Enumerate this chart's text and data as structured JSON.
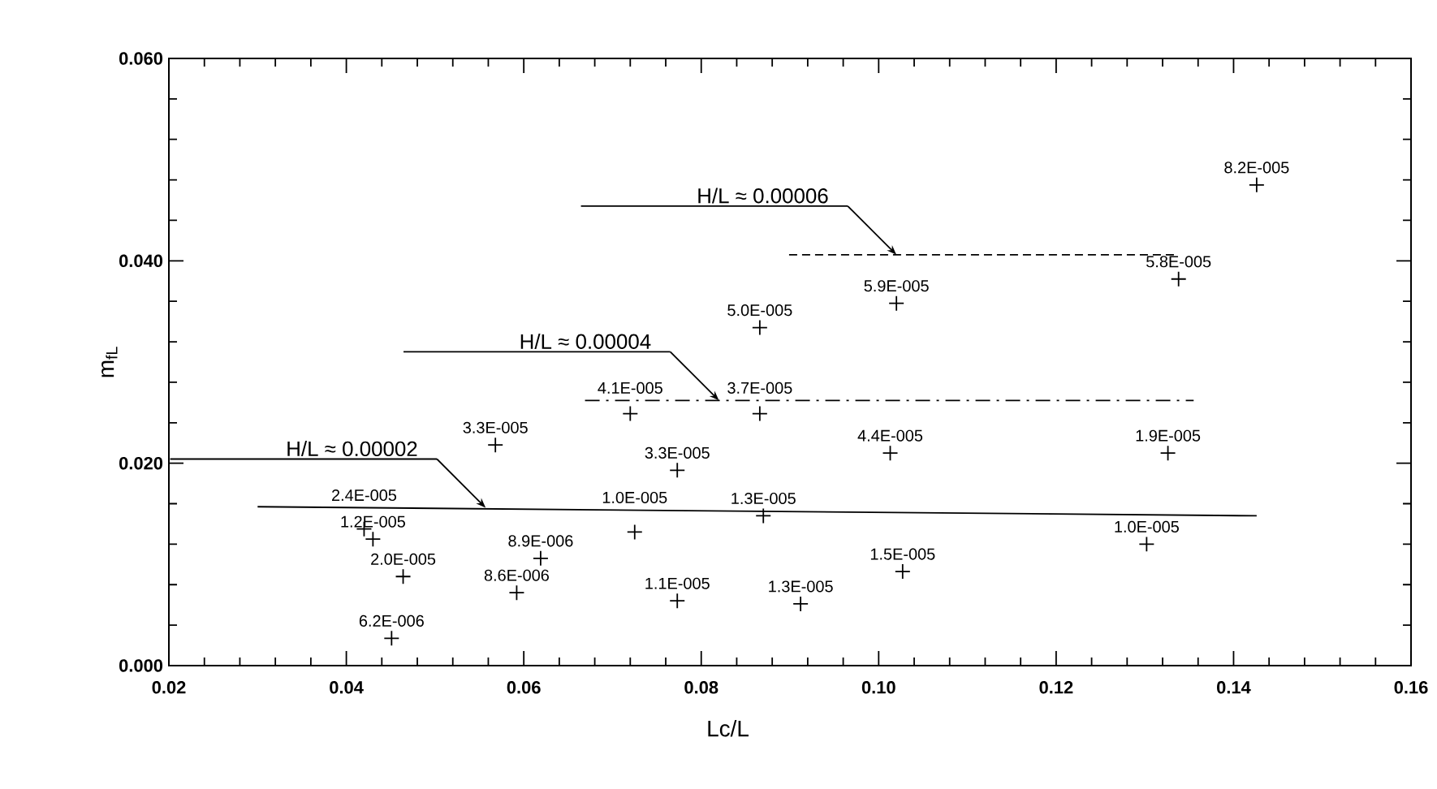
{
  "chart_data": {
    "type": "scatter",
    "xlabel": "Lc/L",
    "ylabel": "m$_{fL}$",
    "xlim": [
      0.02,
      0.16
    ],
    "ylim": [
      0,
      0.06
    ],
    "xticks": [
      {
        "value": 0.02,
        "label": "0.02"
      },
      {
        "value": 0.04,
        "label": "0.04"
      },
      {
        "value": 0.06,
        "label": "0.06"
      },
      {
        "value": 0.08,
        "label": "0.08"
      },
      {
        "value": 0.1,
        "label": "0.10"
      },
      {
        "value": 0.12,
        "label": "0.12"
      },
      {
        "value": 0.14,
        "label": "0.14"
      },
      {
        "value": 0.16,
        "label": "0.16"
      }
    ],
    "yticks": [
      {
        "value": 0,
        "label": "0.000"
      },
      {
        "value": 0.02,
        "label": "0.020"
      },
      {
        "value": 0.04,
        "label": "0.040"
      },
      {
        "value": 0.06,
        "label": "0.060"
      }
    ],
    "grid": false,
    "series": [
      {
        "type": "scatter",
        "marker": "cross",
        "color": "#000000",
        "x": [
          0.0451,
          0.0464,
          0.042,
          0.043,
          0.0568,
          0.0592,
          0.0619,
          0.072,
          0.0773,
          0.0725,
          0.0773,
          0.0866,
          0.087,
          0.0912,
          0.0866,
          0.102,
          0.1013,
          0.1027,
          0.1302,
          0.1326,
          0.1338,
          0.1426
        ],
        "values": [
          0.0027,
          0.0088,
          0.0135,
          0.0125,
          0.0218,
          0.0072,
          0.0106,
          0.0249,
          0.0193,
          0.0132,
          0.0064,
          0.0249,
          0.0148,
          0.0061,
          0.0334,
          0.0358,
          0.021,
          0.0093,
          0.012,
          0.021,
          0.0382,
          0.0475
        ]
      },
      {
        "type": "line",
        "marker": "none",
        "line_style": "solid",
        "color": "#000000",
        "x": [
          0.03,
          0.1426
        ],
        "values": [
          0.0157,
          0.0148
        ]
      },
      {
        "type": "line",
        "marker": "none",
        "line_style": "dashdot",
        "color": "#000000",
        "x": [
          0.0669,
          0.1355
        ],
        "values": [
          0.0262,
          0.0262
        ]
      },
      {
        "type": "line",
        "marker": "none",
        "line_style": "dashed",
        "color": "#000000",
        "x": [
          0.0899,
          0.1337
        ],
        "values": [
          0.0406,
          0.0406
        ]
      }
    ],
    "annotations": [
      {
        "text": "H/L ≈ 0.00002",
        "x": 0.0557,
        "y": 0.0156
      },
      {
        "text": "H/L ≈ 0.00004",
        "x": 0.082,
        "y": 0.0262
      },
      {
        "text": "H/L ≈ 0.00006",
        "x": 0.102,
        "y": 0.0406
      },
      {
        "text": "6.2E-006",
        "x": 0.0451,
        "y": 0.0027
      },
      {
        "text": "2.0E-005",
        "x": 0.0464,
        "y": 0.0088
      },
      {
        "text": "2.4E-005",
        "x": 0.042,
        "y": 0.0135
      },
      {
        "text": "1.2E-005",
        "x": 0.043,
        "y": 0.0125
      },
      {
        "text": "3.3E-005",
        "x": 0.0568,
        "y": 0.0218
      },
      {
        "text": "8.6E-006",
        "x": 0.0592,
        "y": 0.0072
      },
      {
        "text": "8.9E-006",
        "x": 0.0619,
        "y": 0.0106
      },
      {
        "text": "4.1E-005",
        "x": 0.072,
        "y": 0.0249
      },
      {
        "text": "3.3E-005",
        "x": 0.0773,
        "y": 0.0193
      },
      {
        "text": "1.0E-005",
        "x": 0.0725,
        "y": 0.0132
      },
      {
        "text": "1.1E-005",
        "x": 0.0773,
        "y": 0.0064
      },
      {
        "text": "3.7E-005",
        "x": 0.0866,
        "y": 0.0249
      },
      {
        "text": "1.3E-005",
        "x": 0.087,
        "y": 0.0148
      },
      {
        "text": "1.3E-005",
        "x": 0.0912,
        "y": 0.0061
      },
      {
        "text": "5.0E-005",
        "x": 0.0866,
        "y": 0.0334
      },
      {
        "text": "5.9E-005",
        "x": 0.102,
        "y": 0.0358
      },
      {
        "text": "4.4E-005",
        "x": 0.1013,
        "y": 0.021
      },
      {
        "text": "1.5E-005",
        "x": 0.1027,
        "y": 0.0093
      },
      {
        "text": "1.0E-005",
        "x": 0.1302,
        "y": 0.012
      },
      {
        "text": "1.9E-005",
        "x": 0.1326,
        "y": 0.021
      },
      {
        "text": "5.8E-005",
        "x": 0.1338,
        "y": 0.0382
      },
      {
        "text": "8.2E-005",
        "x": 0.1426,
        "y": 0.0475
      }
    ]
  }
}
